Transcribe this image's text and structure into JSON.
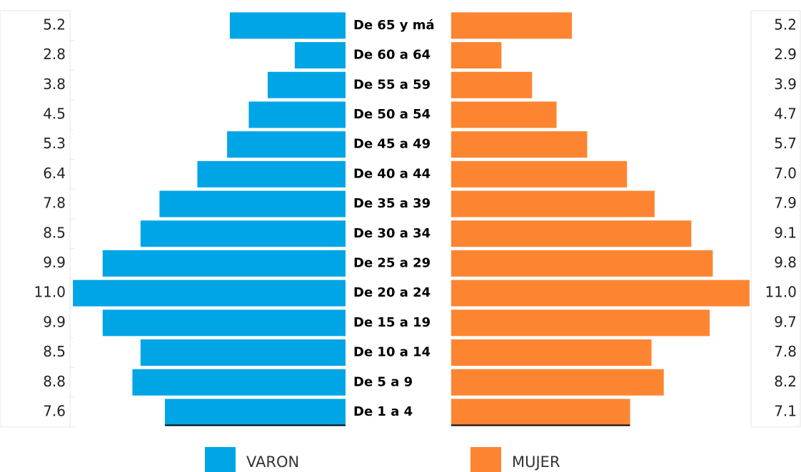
{
  "chart_data": {
    "type": "pyramid",
    "categories": [
      "De 65 y má",
      "De 60 a 64",
      "De 55 a 59",
      "De 50 a 54",
      "De 45 a 49",
      "De 40 a 44",
      "De 35 a 39",
      "De 30 a 34",
      "De 25 a 29",
      "De 20 a 24",
      "De 15 a 19",
      "De 10 a 14",
      "De 5 a 9",
      "De 1 a 4"
    ],
    "series": [
      {
        "name": "VARON",
        "color": "#00a5e6",
        "side": "left",
        "values": [
          5.2,
          2.8,
          3.8,
          4.5,
          5.3,
          6.4,
          7.8,
          8.5,
          9.9,
          11.0,
          9.9,
          8.5,
          8.8,
          7.6
        ],
        "value_labels": [
          "5.2",
          "2.8",
          "3.8",
          "4.5",
          "5.3",
          "6.4",
          "7.8",
          "8.5",
          "9.9",
          "11.0",
          "9.9",
          "8.5",
          "8.8",
          "7.6"
        ]
      },
      {
        "name": "MUJER",
        "color": "#fd8531",
        "side": "right",
        "values": [
          5.2,
          2.9,
          3.9,
          4.7,
          5.7,
          7.0,
          7.9,
          9.1,
          9.8,
          11.0,
          9.7,
          7.8,
          8.2,
          7.1
        ],
        "value_labels": [
          "5.2",
          "2.9",
          "3.9",
          "4.7",
          "5.7",
          "7.0",
          "7.9",
          "9.1",
          "9.8",
          "11.0",
          "9.7",
          "7.8",
          "8.2",
          "7.1"
        ]
      }
    ]
  }
}
